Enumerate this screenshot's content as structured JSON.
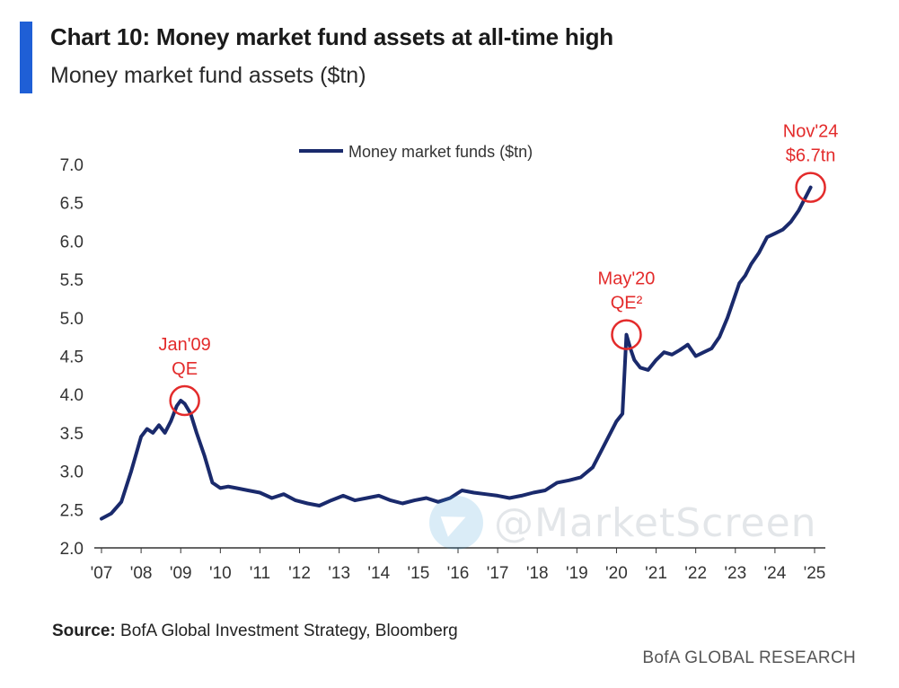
{
  "header": {
    "title": "Chart 10: Money market fund assets at all-time high",
    "subtitle": "Money market fund assets ($tn)"
  },
  "colors": {
    "accent": "#1f5fd6",
    "line": "#1a2a6c",
    "annotation": "#e32b2b"
  },
  "chart_data": {
    "type": "line",
    "title": "Chart 10: Money market fund assets at all-time high",
    "subtitle": "Money market fund assets ($tn)",
    "xlabel": "",
    "ylabel": "",
    "ylim": [
      2.0,
      7.0
    ],
    "yticks": [
      "2.0",
      "2.5",
      "3.0",
      "3.5",
      "4.0",
      "4.5",
      "5.0",
      "5.5",
      "6.0",
      "6.5",
      "7.0"
    ],
    "xticks": [
      "'07",
      "'08",
      "'09",
      "'10",
      "'11",
      "'12",
      "'13",
      "'14",
      "'15",
      "'16",
      "'17",
      "'18",
      "'19",
      "'20",
      "'21",
      "'22",
      "'23",
      "'24",
      "'25"
    ],
    "xlim": [
      2007.0,
      2025.0
    ],
    "legend": {
      "label": "Money market funds ($tn)",
      "placement": "top-center"
    },
    "series": [
      {
        "name": "Money market funds ($tn)",
        "x": [
          2007.0,
          2007.25,
          2007.5,
          2007.75,
          2008.0,
          2008.15,
          2008.3,
          2008.45,
          2008.6,
          2008.75,
          2008.9,
          2009.0,
          2009.1,
          2009.25,
          2009.4,
          2009.6,
          2009.8,
          2010.0,
          2010.2,
          2010.4,
          2010.7,
          2011.0,
          2011.3,
          2011.6,
          2011.9,
          2012.2,
          2012.5,
          2012.8,
          2013.1,
          2013.4,
          2013.7,
          2014.0,
          2014.3,
          2014.6,
          2014.9,
          2015.2,
          2015.5,
          2015.8,
          2016.1,
          2016.4,
          2016.7,
          2017.0,
          2017.3,
          2017.6,
          2017.9,
          2018.2,
          2018.5,
          2018.8,
          2019.1,
          2019.4,
          2019.6,
          2019.8,
          2020.0,
          2020.15,
          2020.25,
          2020.35,
          2020.45,
          2020.6,
          2020.8,
          2021.0,
          2021.2,
          2021.4,
          2021.6,
          2021.8,
          2022.0,
          2022.2,
          2022.4,
          2022.6,
          2022.8,
          2023.0,
          2023.1,
          2023.25,
          2023.4,
          2023.6,
          2023.8,
          2024.0,
          2024.2,
          2024.4,
          2024.6,
          2024.8,
          2024.9
        ],
        "values": [
          2.38,
          2.45,
          2.6,
          3.0,
          3.45,
          3.55,
          3.5,
          3.6,
          3.5,
          3.65,
          3.85,
          3.92,
          3.88,
          3.75,
          3.5,
          3.2,
          2.85,
          2.78,
          2.8,
          2.78,
          2.75,
          2.72,
          2.65,
          2.7,
          2.62,
          2.58,
          2.55,
          2.62,
          2.68,
          2.62,
          2.65,
          2.68,
          2.62,
          2.58,
          2.62,
          2.65,
          2.6,
          2.65,
          2.75,
          2.72,
          2.7,
          2.68,
          2.65,
          2.68,
          2.72,
          2.75,
          2.85,
          2.88,
          2.92,
          3.05,
          3.25,
          3.45,
          3.65,
          3.75,
          4.78,
          4.6,
          4.45,
          4.35,
          4.32,
          4.45,
          4.55,
          4.52,
          4.58,
          4.65,
          4.5,
          4.55,
          4.6,
          4.75,
          5.0,
          5.3,
          5.45,
          5.55,
          5.7,
          5.85,
          6.05,
          6.1,
          6.15,
          6.25,
          6.4,
          6.6,
          6.7
        ]
      }
    ],
    "annotations": [
      {
        "x": 2009.1,
        "y": 3.92,
        "label_line1": "Jan'09",
        "label_line2": "QE"
      },
      {
        "x": 2020.25,
        "y": 4.78,
        "label_line1": "May'20",
        "label_line2": "QE²"
      },
      {
        "x": 2024.9,
        "y": 6.7,
        "label_line1": "Nov'24",
        "label_line2": "$6.7tn"
      }
    ]
  },
  "source": {
    "label": "Source:",
    "text": "BofA Global Investment Strategy, Bloomberg"
  },
  "footer": {
    "brand": "BofA GLOBAL RESEARCH"
  },
  "watermark": {
    "text": "@MarketScreen",
    "icon": "telegram-icon"
  }
}
